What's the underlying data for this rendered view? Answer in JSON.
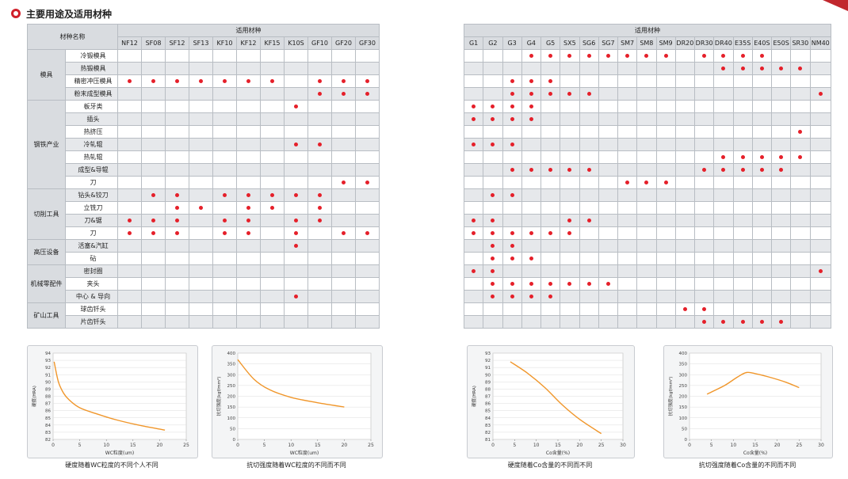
{
  "header": {
    "title": "主要用途及适用材种",
    "icon": "circle-bullet-icon",
    "accent": "#d0202a"
  },
  "colors": {
    "dot": "#e5202a",
    "curve": "#f0962a",
    "header_fill": "#d9dce0",
    "shade": "#e6e8eb"
  },
  "tables": [
    {
      "corner": "材种名称",
      "group_header": "适用材种",
      "columns": [
        "NF12",
        "SF08",
        "SF12",
        "SF13",
        "KF10",
        "KF12",
        "KF15",
        "K10S",
        "GF10",
        "GF20",
        "GF30"
      ],
      "groups": [
        {
          "name": "模具",
          "rows": [
            {
              "label": "冷锻模具",
              "marks": []
            },
            {
              "label": "热锻模具",
              "marks": []
            },
            {
              "label": "精密冲压模具",
              "marks": [
                "NF12",
                "SF08",
                "SF12",
                "SF13",
                "KF10",
                "KF12",
                "KF15",
                "GF10",
                "GF20",
                "GF30"
              ]
            },
            {
              "label": "粉末成型模具",
              "marks": [
                "GF10",
                "GF20",
                "GF30"
              ]
            }
          ]
        },
        {
          "name": "钢铁产业",
          "rows": [
            {
              "label": "板牙类",
              "marks": [
                "K10S"
              ]
            },
            {
              "label": "插头",
              "marks": []
            },
            {
              "label": "热挤压",
              "marks": []
            },
            {
              "label": "冷轧辊",
              "marks": [
                "K10S",
                "GF10"
              ]
            },
            {
              "label": "热轧辊",
              "marks": []
            },
            {
              "label": "成型&导辊",
              "marks": []
            },
            {
              "label": "刀",
              "marks": [
                "GF20",
                "GF30"
              ]
            }
          ]
        },
        {
          "name": "切削工具",
          "rows": [
            {
              "label": "钻头&铰刀",
              "marks": [
                "SF08",
                "SF12",
                "KF10",
                "KF12",
                "KF15",
                "K10S",
                "GF10"
              ]
            },
            {
              "label": "立铣刀",
              "marks": [
                "SF12",
                "SF13",
                "KF12",
                "KF15",
                "GF10"
              ]
            },
            {
              "label": "刀&锯",
              "marks": [
                "NF12",
                "SF08",
                "SF12",
                "KF10",
                "KF12",
                "K10S",
                "GF10"
              ]
            },
            {
              "label": "刀",
              "marks": [
                "NF12",
                "SF08",
                "SF12",
                "KF10",
                "KF12",
                "K10S",
                "GF20",
                "GF30"
              ]
            }
          ]
        },
        {
          "name": "高压设备",
          "rows": [
            {
              "label": "活塞&汽缸",
              "marks": [
                "K10S"
              ]
            },
            {
              "label": "砧",
              "marks": []
            }
          ]
        },
        {
          "name": "机械零配件",
          "rows": [
            {
              "label": "密封圈",
              "marks": []
            },
            {
              "label": "夹头",
              "marks": []
            },
            {
              "label": "中心 & 导向",
              "marks": [
                "K10S"
              ]
            }
          ]
        },
        {
          "name": "矿山工具",
          "rows": [
            {
              "label": "球齿钎头",
              "marks": []
            },
            {
              "label": "片齿钎头",
              "marks": []
            }
          ]
        }
      ]
    },
    {
      "group_header": "适用材种",
      "columns": [
        "G1",
        "G2",
        "G3",
        "G4",
        "G5",
        "SX5",
        "SG6",
        "SG7",
        "SM7",
        "SM8",
        "SM9",
        "DR20",
        "DR30",
        "DR40",
        "E35S",
        "E40S",
        "E50S",
        "SR30",
        "NM40"
      ],
      "rows_marks": [
        [
          "G4",
          "G5",
          "SX5",
          "SG6",
          "SG7",
          "SM7",
          "SM8",
          "SM9",
          "DR30",
          "DR40",
          "E35S",
          "E40S"
        ],
        [
          "DR40",
          "E35S",
          "E40S",
          "E50S",
          "SR30"
        ],
        [
          "G3",
          "G4",
          "G5"
        ],
        [
          "G3",
          "G4",
          "G5",
          "SX5",
          "SG6",
          "NM40"
        ],
        [
          "G1",
          "G2",
          "G3",
          "G4"
        ],
        [
          "G1",
          "G2",
          "G3",
          "G4"
        ],
        [
          "SR30"
        ],
        [
          "G1",
          "G2",
          "G3"
        ],
        [
          "DR40",
          "E35S",
          "E40S",
          "E50S",
          "SR30"
        ],
        [
          "G3",
          "G4",
          "G5",
          "SX5",
          "SG6",
          "DR30",
          "DR40",
          "E35S",
          "E40S",
          "E50S"
        ],
        [
          "SM7",
          "SM8",
          "SM9"
        ],
        [
          "G2",
          "G3"
        ],
        [],
        [
          "G1",
          "G2",
          "SX5",
          "SG6"
        ],
        [
          "G1",
          "G2",
          "G3",
          "G4",
          "G5",
          "SX5"
        ],
        [
          "G2",
          "G3"
        ],
        [
          "G2",
          "G3",
          "G4"
        ],
        [
          "G1",
          "G2",
          "NM40"
        ],
        [
          "G2",
          "G3",
          "G4",
          "G5",
          "SX5",
          "SG6",
          "SG7"
        ],
        [
          "G2",
          "G3",
          "G4",
          "G5"
        ],
        [
          "DR20",
          "DR30"
        ],
        [
          "DR30",
          "DR40",
          "E35S",
          "E40S",
          "E50S"
        ]
      ]
    }
  ],
  "chart_data": [
    {
      "type": "line",
      "ylabel": "硬度(HRA)",
      "xlabel": "WC粒度(um)",
      "caption": "硬度随着WC粒度的不同个人不同",
      "xlim": [
        0,
        25
      ],
      "ylim": [
        82,
        94
      ],
      "xticks": [
        "0",
        "5",
        "10",
        "15",
        "20",
        "25"
      ],
      "yticks": [
        "82",
        "83",
        "84",
        "85",
        "86",
        "87",
        "88",
        "89",
        "90",
        "91",
        "92",
        "93",
        "94"
      ],
      "x": [
        0.2,
        1,
        2,
        3,
        5,
        8,
        12,
        16,
        21
      ],
      "y": [
        92.8,
        90.0,
        88.4,
        87.5,
        86.4,
        85.6,
        84.7,
        84.0,
        83.3
      ]
    },
    {
      "type": "line",
      "ylabel": "抗切强度(kgf/mm²)",
      "xlabel": "WC粒度(um)",
      "caption": "抗切强度随着WC粒度的不同而不同",
      "xlim": [
        0,
        25
      ],
      "ylim": [
        0,
        400
      ],
      "xticks": [
        "0",
        "5",
        "10",
        "15",
        "20",
        "25"
      ],
      "yticks": [
        "0",
        "50",
        "100",
        "150",
        "200",
        "250",
        "300",
        "350",
        "400"
      ],
      "x": [
        0,
        3,
        6,
        10,
        15,
        20
      ],
      "y": [
        370,
        280,
        230,
        195,
        170,
        150
      ]
    },
    {
      "type": "line",
      "ylabel": "硬度(HRA)",
      "xlabel": "Co含量(%)",
      "caption": "硬度随着Co含量的不同而不同",
      "xlim": [
        0,
        30
      ],
      "ylim": [
        81,
        93
      ],
      "xticks": [
        "0",
        "5",
        "10",
        "15",
        "20",
        "25",
        "30"
      ],
      "yticks": [
        "81",
        "82",
        "83",
        "84",
        "85",
        "86",
        "87",
        "88",
        "89",
        "90",
        "91",
        "92",
        "93"
      ],
      "x": [
        4,
        8,
        12,
        16,
        20,
        25
      ],
      "y": [
        91.8,
        90.2,
        88.2,
        85.8,
        83.8,
        81.8
      ]
    },
    {
      "type": "line",
      "ylabel": "抗切强度(kgf/mm²)",
      "xlabel": "Co含量(%)",
      "caption": "抗切强度随着Co含量的不同而不同",
      "xlim": [
        0,
        30
      ],
      "ylim": [
        0,
        400
      ],
      "xticks": [
        "0",
        "5",
        "10",
        "15",
        "20",
        "25",
        "30"
      ],
      "yticks": [
        "0",
        "50",
        "100",
        "150",
        "200",
        "250",
        "300",
        "350",
        "400"
      ],
      "x": [
        4,
        8,
        11,
        13,
        15,
        18,
        22,
        25
      ],
      "y": [
        210,
        250,
        290,
        310,
        305,
        290,
        265,
        240
      ]
    }
  ]
}
